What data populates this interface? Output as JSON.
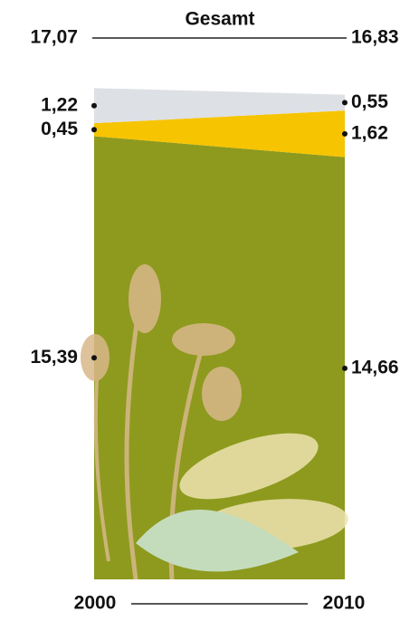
{
  "chart_data": {
    "type": "stacked-area",
    "title": "Gesamt",
    "categories": [
      "2000",
      "2010"
    ],
    "totals": {
      "values": [
        17.07,
        16.83
      ],
      "value_labels": [
        "17,07",
        "16,83"
      ]
    },
    "series": [
      {
        "color": "#8d9a1e",
        "values": [
          15.39,
          14.66
        ],
        "value_labels": [
          "15,39",
          "14,66"
        ]
      },
      {
        "color": "#f6c400",
        "values": [
          0.45,
          1.62
        ],
        "value_labels": [
          "0,45",
          "1,62"
        ]
      },
      {
        "color": "#dde0e4",
        "values": [
          1.22,
          0.55
        ],
        "value_labels": [
          "1,22",
          "0,55"
        ]
      }
    ],
    "ylim": [
      0,
      17.07
    ]
  }
}
